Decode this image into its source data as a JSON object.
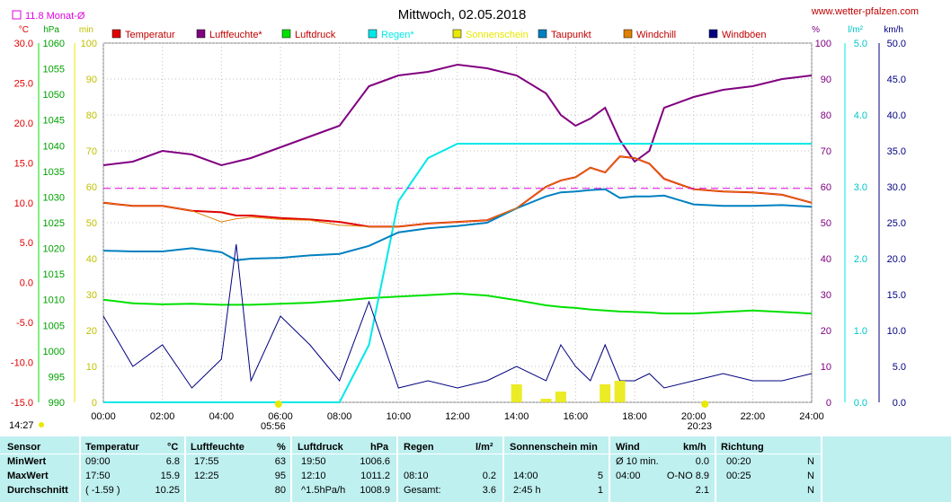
{
  "header": {
    "title": "Mittwoch, 02.05.2018",
    "url": "www.wetter-pfalzen.com",
    "month_avg": "11.8 Monat-Ø"
  },
  "axes": {
    "left_units": [
      "°C",
      "hPa",
      "min"
    ],
    "right_units": [
      "%",
      "l/m²",
      "km/h"
    ],
    "temp_ticks": [
      "30.0",
      "25.0",
      "20.0",
      "15.0",
      "10.0",
      "5.0",
      "0.0",
      "-5.0",
      "-10.0",
      "-15.0"
    ],
    "pressure_ticks": [
      "1060",
      "1055",
      "1050",
      "1045",
      "1040",
      "1035",
      "1030",
      "1025",
      "1020",
      "1015",
      "1010",
      "1005",
      "1000",
      "995",
      "990"
    ],
    "minute_ticks": [
      "100",
      "90",
      "80",
      "70",
      "60",
      "50",
      "40",
      "30",
      "20",
      "10",
      "0"
    ],
    "percent_ticks": [
      "100",
      "90",
      "80",
      "70",
      "60",
      "50",
      "40",
      "30",
      "20",
      "10",
      "0"
    ],
    "rain_ticks": [
      "5.0",
      "4.0",
      "3.0",
      "2.0",
      "1.0",
      "0.0"
    ],
    "wind_ticks": [
      "50.0",
      "45.0",
      "40.0",
      "35.0",
      "30.0",
      "25.0",
      "20.0",
      "15.0",
      "10.0",
      "5.0",
      "0.0"
    ],
    "time_ticks": [
      "00:00",
      "02:00",
      "04:00",
      "06:00",
      "08:00",
      "10:00",
      "12:00",
      "14:00",
      "16:00",
      "18:00",
      "20:00",
      "22:00",
      "24:00"
    ],
    "sunrise": "05:56",
    "sunset": "20:23",
    "left_time": "14:27"
  },
  "colors": {
    "temperature": "#e00000",
    "humidity": "#800080",
    "pressure": "#00e000",
    "rain": "#00e8e8",
    "sunshine": "#e8e800",
    "dewpoint": "#0080c0",
    "windchill": "#e08000",
    "gusts": "#000080",
    "monthavg": "#e000e0",
    "stats_bg": "#bff0f0"
  },
  "chart_data": {
    "type": "line",
    "title": "Mittwoch, 02.05.2018",
    "x": [
      "00:00",
      "01:00",
      "02:00",
      "03:00",
      "04:00",
      "04:30",
      "05:00",
      "06:00",
      "07:00",
      "08:00",
      "09:00",
      "10:00",
      "11:00",
      "12:00",
      "13:00",
      "14:00",
      "15:00",
      "15:30",
      "16:00",
      "16:30",
      "17:00",
      "17:30",
      "18:00",
      "18:30",
      "19:00",
      "20:00",
      "21:00",
      "22:00",
      "23:00",
      "24:00"
    ],
    "series": [
      {
        "name": "Temperatur",
        "axis": "°C",
        "values": [
          10.0,
          9.6,
          9.6,
          9.0,
          8.8,
          8.4,
          8.4,
          8.1,
          7.9,
          7.6,
          7.0,
          7.0,
          7.4,
          7.6,
          7.8,
          9.3,
          12.0,
          12.8,
          13.2,
          14.4,
          13.8,
          15.8,
          15.6,
          14.9,
          13.0,
          11.7,
          11.4,
          11.3,
          11.0,
          10.0
        ]
      },
      {
        "name": "Luftfeuchte*",
        "axis": "%",
        "values": [
          66,
          67,
          70,
          69,
          66,
          67,
          68,
          71,
          74,
          77,
          88,
          91,
          92,
          94,
          93,
          91,
          86,
          80,
          77,
          79,
          82,
          73,
          67,
          70,
          82,
          85,
          87,
          88,
          90,
          91
        ]
      },
      {
        "name": "Luftdruck",
        "axis": "hPa",
        "values": [
          1010.0,
          1009.3,
          1009.1,
          1009.2,
          1009.0,
          1009.0,
          1009.0,
          1009.2,
          1009.4,
          1009.8,
          1010.3,
          1010.6,
          1010.9,
          1011.2,
          1010.8,
          1009.9,
          1008.9,
          1008.6,
          1008.4,
          1008.1,
          1007.9,
          1007.7,
          1007.6,
          1007.5,
          1007.3,
          1007.3,
          1007.6,
          1007.9,
          1007.6,
          1007.3
        ]
      },
      {
        "name": "Regen*",
        "axis": "l/m²",
        "values": [
          0,
          0,
          0,
          0,
          0,
          0,
          0,
          0,
          0,
          0,
          0.8,
          2.8,
          3.4,
          3.6,
          3.6,
          3.6,
          3.6,
          3.6,
          3.6,
          3.6,
          3.6,
          3.6,
          3.6,
          3.6,
          3.6,
          3.6,
          3.6,
          3.6,
          3.6,
          3.6
        ]
      },
      {
        "name": "Taupunkt",
        "axis": "°C",
        "values": [
          4.0,
          3.9,
          3.9,
          4.3,
          3.8,
          2.8,
          3.0,
          3.1,
          3.4,
          3.6,
          4.6,
          6.3,
          6.8,
          7.1,
          7.5,
          9.3,
          10.8,
          11.3,
          11.4,
          11.6,
          11.7,
          10.6,
          10.8,
          10.8,
          10.9,
          9.8,
          9.6,
          9.6,
          9.7,
          9.5
        ]
      },
      {
        "name": "Windchill",
        "axis": "°C",
        "values": [
          10.0,
          9.6,
          9.6,
          9.0,
          7.6,
          8.0,
          8.2,
          7.9,
          7.8,
          7.2,
          7.0,
          7.0,
          7.4,
          7.6,
          7.8,
          9.3,
          12.0,
          12.8,
          13.2,
          14.4,
          13.8,
          15.8,
          15.6,
          14.9,
          13.0,
          11.7,
          11.4,
          11.3,
          11.0,
          10.0
        ]
      },
      {
        "name": "Windböen",
        "axis": "km/h",
        "values": [
          12,
          5,
          8,
          2,
          6,
          22,
          3,
          12,
          8,
          3,
          14,
          2,
          3,
          2,
          3,
          5,
          3,
          8,
          5,
          3,
          8,
          3,
          3,
          4,
          2,
          3,
          4,
          3,
          3,
          4
        ]
      },
      {
        "name": "Sonnenschein",
        "axis": "min",
        "values": [
          0,
          0,
          0,
          0,
          0,
          0,
          0,
          0,
          0,
          0,
          0,
          0,
          0,
          0,
          0,
          5,
          1,
          3,
          0,
          0,
          5,
          6,
          0,
          0,
          0,
          0,
          0,
          0,
          0,
          0
        ]
      },
      {
        "name": "Monat-Ø",
        "axis": "°C",
        "values": [
          11.8,
          11.8,
          11.8,
          11.8,
          11.8,
          11.8,
          11.8,
          11.8,
          11.8,
          11.8,
          11.8,
          11.8,
          11.8,
          11.8,
          11.8,
          11.8,
          11.8,
          11.8,
          11.8,
          11.8,
          11.8,
          11.8,
          11.8,
          11.8,
          11.8,
          11.8,
          11.8,
          11.8,
          11.8,
          11.8
        ]
      }
    ],
    "ylim_temp": [
      -15,
      30
    ],
    "ylim_pressure": [
      990,
      1060
    ],
    "ylim_minutes": [
      0,
      100
    ],
    "ylim_percent": [
      0,
      100
    ],
    "ylim_rain": [
      0,
      5
    ],
    "ylim_wind": [
      0,
      50
    ],
    "grid": true,
    "legend_placement": "top"
  },
  "stats": {
    "headers": {
      "sensor": "Sensor",
      "temp": "Temperatur",
      "temp_unit": "°C",
      "hum": "Luftfeuchte",
      "hum_unit": "%",
      "press": "Luftdruck",
      "press_unit": "hPa",
      "rain": "Regen",
      "rain_unit": "l/m²",
      "sun": "Sonnenschein min",
      "wind": "Wind",
      "wind_unit": "km/h",
      "dir": "Richtung"
    },
    "rows": [
      {
        "label": "MinWert",
        "t_time": "09:00",
        "t_val": "6.8",
        "h_time": "17:55",
        "h_val": "63",
        "p_time": "19:50",
        "p_val": "1006.6",
        "r_time": "",
        "r_val": "",
        "s_time": "",
        "s_val": "",
        "w_time": "Ø 10 min.",
        "w_val": "0.0",
        "d_time": "00:20",
        "d_val": "N"
      },
      {
        "label": "MaxWert",
        "t_time": "17:50",
        "t_val": "15.9",
        "h_time": "12:25",
        "h_val": "95",
        "p_time": "12:10",
        "p_val": "1011.2",
        "r_time": "08:10",
        "r_val": "0.2",
        "s_time": "14:00",
        "s_val": "5",
        "w_time": "04:00",
        "w_val": "O-NO 8.9",
        "d_time": "00:25",
        "d_val": "N"
      },
      {
        "label": "Durchschnitt",
        "t_time": "( -1.59 )",
        "t_val": "10.25",
        "h_time": "",
        "h_val": "80",
        "p_time": "^1.5hPa/h",
        "p_val": "1008.9",
        "r_time": "Gesamt:",
        "r_val": "3.6",
        "s_time": "2:45 h",
        "s_val": "1",
        "w_time": "",
        "w_val": "2.1",
        "d_time": "",
        "d_val": "N"
      }
    ]
  }
}
